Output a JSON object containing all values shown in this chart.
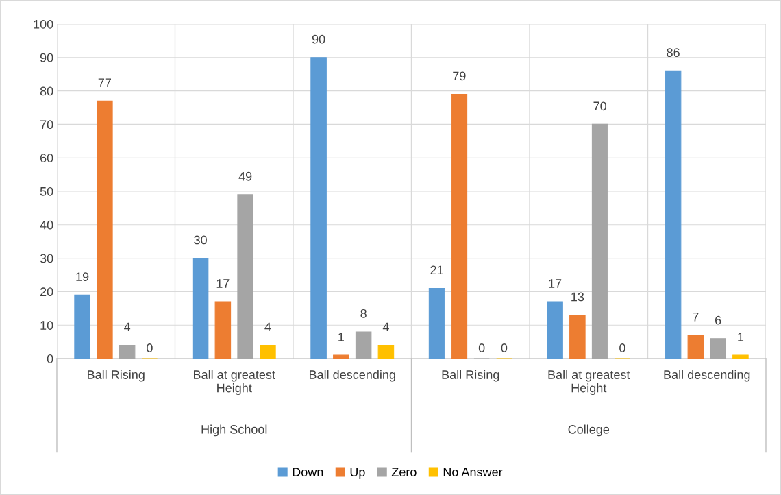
{
  "chart_data": {
    "type": "bar",
    "categories": [
      "Ball Rising",
      "Ball at greatest\nHeight",
      "Ball descending",
      "Ball Rising",
      "Ball at greatest\nHeight",
      "Ball descending"
    ],
    "series": [
      {
        "name": "Down",
        "color": "#5b9bd5",
        "values": [
          19,
          30,
          90,
          21,
          17,
          86
        ]
      },
      {
        "name": "Up",
        "color": "#ed7d31",
        "values": [
          77,
          17,
          1,
          79,
          13,
          7
        ]
      },
      {
        "name": "Zero",
        "color": "#a5a5a5",
        "values": [
          4,
          49,
          8,
          0,
          70,
          6
        ]
      },
      {
        "name": "No Answer",
        "color": "#ffc000",
        "values": [
          0,
          4,
          4,
          0,
          0,
          1
        ]
      }
    ],
    "annotations": [
      "High School",
      "College"
    ],
    "ylim": [
      0,
      100
    ],
    "yticks": [
      0,
      10,
      20,
      30,
      40,
      50,
      60,
      70,
      80,
      90,
      100
    ],
    "grid": "y",
    "legend": "bottom",
    "data_labels": true
  }
}
